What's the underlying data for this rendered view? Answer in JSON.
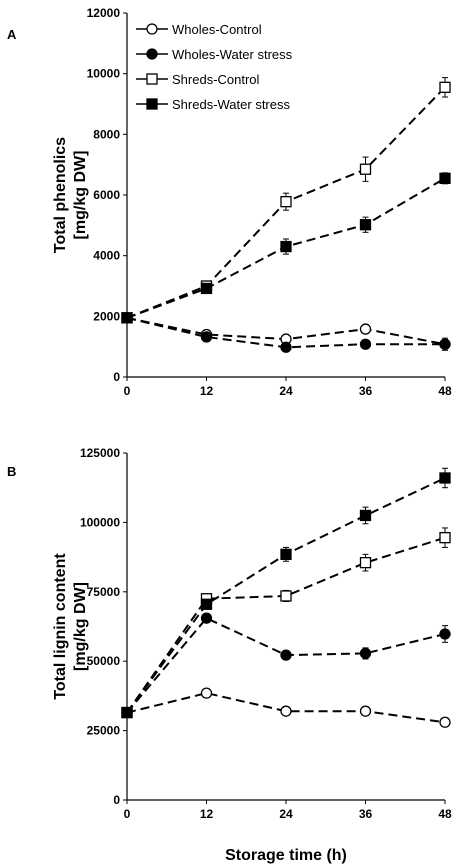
{
  "chart_data": [
    {
      "panel_label": "A",
      "type": "line",
      "x": [
        0,
        12,
        24,
        36,
        48
      ],
      "xticks": [
        "0",
        "12",
        "24",
        "36",
        "48"
      ],
      "xlim": [
        0,
        48
      ],
      "ylim": [
        0,
        12000
      ],
      "yticks": [
        "0",
        "2000",
        "4000",
        "6000",
        "8000",
        "10000",
        "12000"
      ],
      "ylabel_line1": "Total phenolics",
      "ylabel_line2": "[mg/kg DW]",
      "xlabel": "",
      "legend_position": "top-left",
      "series": [
        {
          "name": "Wholes-Control",
          "marker": "circle-open",
          "values": [
            1950,
            1400,
            1250,
            1580,
            1080
          ],
          "errors": [
            80,
            100,
            120,
            100,
            200
          ]
        },
        {
          "name": "Wholes-Water stress",
          "marker": "circle-filled",
          "values": [
            1950,
            1320,
            980,
            1080,
            1080
          ],
          "errors": [
            80,
            120,
            80,
            80,
            150
          ]
        },
        {
          "name": "Shreds-Control",
          "marker": "square-open",
          "values": [
            1950,
            3000,
            5780,
            6850,
            9550
          ],
          "errors": [
            80,
            100,
            280,
            400,
            320
          ]
        },
        {
          "name": "Shreds-Water stress",
          "marker": "square-filled",
          "values": [
            1950,
            2920,
            4300,
            5020,
            6550
          ],
          "errors": [
            80,
            100,
            250,
            250,
            180
          ]
        }
      ]
    },
    {
      "panel_label": "B",
      "type": "line",
      "x": [
        0,
        12,
        24,
        36,
        48
      ],
      "xticks": [
        "0",
        "12",
        "24",
        "36",
        "48"
      ],
      "xlim": [
        0,
        48
      ],
      "ylim": [
        0,
        125000
      ],
      "yticks": [
        "0",
        "25000",
        "50000",
        "75000",
        "100000",
        "125000"
      ],
      "ylabel_line1": "Total lignin content",
      "ylabel_line2": "[mg/kg DW]",
      "xlabel": "Storage time (h)",
      "series": [
        {
          "name": "Wholes-Control",
          "marker": "circle-open",
          "values": [
            31500,
            38500,
            32000,
            32000,
            28000
          ],
          "errors": [
            1000,
            1500,
            1000,
            1000,
            1500
          ]
        },
        {
          "name": "Wholes-Water stress",
          "marker": "circle-filled",
          "values": [
            31500,
            65500,
            52200,
            52800,
            59800
          ],
          "errors": [
            1000,
            1500,
            1500,
            2000,
            3000
          ]
        },
        {
          "name": "Shreds-Control",
          "marker": "square-open",
          "values": [
            31500,
            72500,
            73500,
            85500,
            94500
          ],
          "errors": [
            1000,
            1500,
            2000,
            3000,
            3500
          ]
        },
        {
          "name": "Shreds-Water stress",
          "marker": "square-filled",
          "values": [
            31500,
            70500,
            88500,
            102500,
            116000
          ],
          "errors": [
            1000,
            1500,
            2500,
            3000,
            3500
          ]
        }
      ]
    }
  ]
}
